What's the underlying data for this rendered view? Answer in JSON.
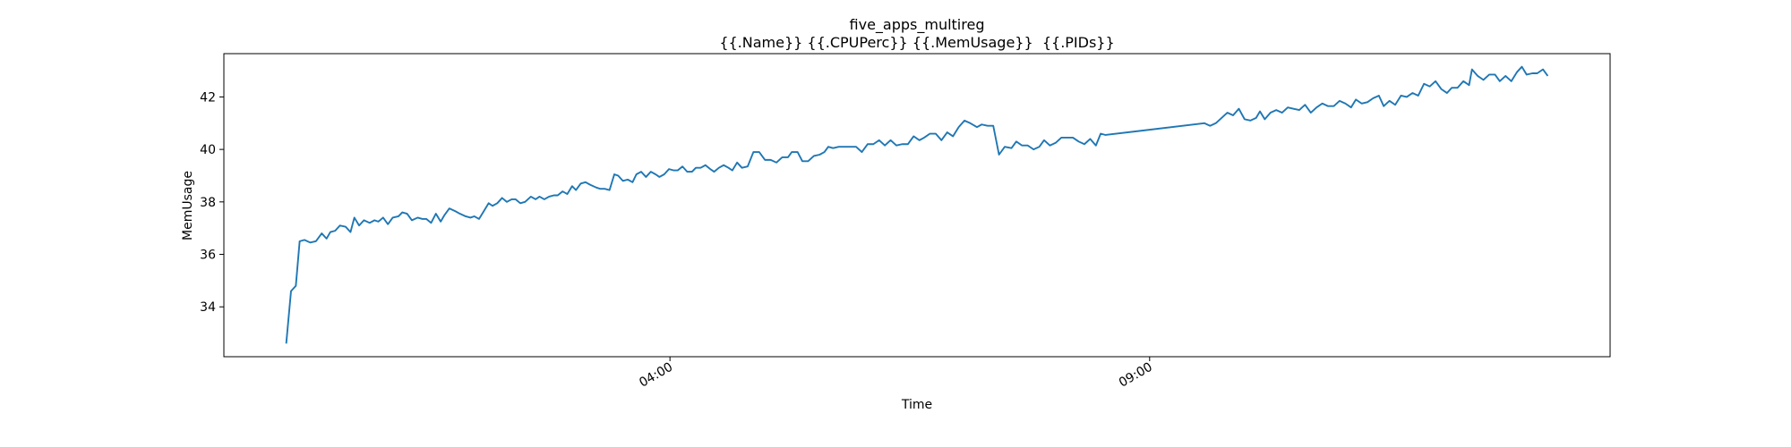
{
  "chart_data": {
    "type": "line",
    "title": "five_apps_multireg",
    "subtitle": "{{.Name}} {{.CPUPerc}} {{.MemUsage}}  {{.PIDs}}",
    "xlabel": "Time",
    "ylabel": "MemUsage",
    "x": [
      0,
      0.05,
      0.1,
      0.14,
      0.19,
      0.25,
      0.31,
      0.37,
      0.42,
      0.46,
      0.51,
      0.56,
      0.62,
      0.67,
      0.71,
      0.76,
      0.81,
      0.87,
      0.92,
      0.96,
      1.01,
      1.06,
      1.11,
      1.17,
      1.21,
      1.26,
      1.31,
      1.37,
      1.42,
      1.46,
      1.51,
      1.56,
      1.61,
      1.65,
      1.7,
      1.76,
      1.81,
      1.87,
      1.92,
      1.96,
      2.01,
      2.06,
      2.11,
      2.15,
      2.2,
      2.25,
      2.3,
      2.35,
      2.39,
      2.44,
      2.49,
      2.55,
      2.6,
      2.64,
      2.69,
      2.74,
      2.79,
      2.83,
      2.88,
      2.93,
      2.98,
      3.02,
      3.07,
      3.12,
      3.17,
      3.23,
      3.27,
      3.32,
      3.37,
      3.42,
      3.46,
      3.51,
      3.56,
      3.61,
      3.65,
      3.7,
      3.75,
      3.8,
      3.85,
      3.89,
      3.94,
      3.99,
      4.04,
      4.08,
      4.13,
      4.18,
      4.23,
      4.27,
      4.32,
      4.37,
      4.42,
      4.46,
      4.51,
      4.56,
      4.61,
      4.65,
      4.7,
      4.75,
      4.81,
      4.87,
      4.93,
      4.99,
      5.05,
      5.11,
      5.17,
      5.23,
      5.27,
      5.33,
      5.38,
      5.44,
      5.5,
      5.56,
      5.61,
      5.65,
      5.7,
      5.76,
      5.82,
      5.88,
      5.94,
      6.0,
      6.06,
      6.12,
      6.18,
      6.24,
      6.3,
      6.36,
      6.42,
      6.48,
      6.54,
      6.6,
      6.65,
      6.71,
      6.77,
      6.83,
      6.89,
      6.95,
      7.01,
      7.07,
      7.13,
      7.2,
      7.25,
      7.31,
      7.37,
      7.43,
      7.49,
      7.56,
      7.61,
      7.67,
      7.73,
      7.79,
      7.85,
      7.9,
      7.96,
      8.02,
      8.08,
      8.14,
      8.2,
      8.26,
      8.32,
      8.38,
      8.44,
      8.49,
      8.54,
      9.57,
      9.63,
      9.69,
      9.75,
      9.81,
      9.87,
      9.93,
      9.99,
      10.05,
      10.11,
      10.15,
      10.2,
      10.26,
      10.32,
      10.38,
      10.44,
      10.5,
      10.56,
      10.62,
      10.68,
      10.74,
      10.8,
      10.86,
      10.92,
      10.98,
      11.04,
      11.1,
      11.15,
      11.21,
      11.27,
      11.33,
      11.39,
      11.44,
      11.5,
      11.56,
      11.62,
      11.68,
      11.74,
      11.8,
      11.86,
      11.92,
      11.98,
      12.04,
      12.1,
      12.15,
      12.21,
      12.27,
      12.33,
      12.36,
      12.42,
      12.48,
      12.54,
      12.6,
      12.65,
      12.71,
      12.77,
      12.83,
      12.88,
      12.93,
      12.99,
      13.04,
      13.1,
      13.15
    ],
    "series": [
      {
        "name": "MemUsage",
        "color": "#1f77b4",
        "values": [
          32.6,
          34.6,
          34.8,
          36.5,
          36.55,
          36.45,
          36.5,
          36.8,
          36.6,
          36.85,
          36.9,
          37.1,
          37.05,
          36.85,
          37.4,
          37.1,
          37.3,
          37.2,
          37.3,
          37.25,
          37.4,
          37.15,
          37.4,
          37.45,
          37.6,
          37.55,
          37.3,
          37.4,
          37.35,
          37.35,
          37.2,
          37.55,
          37.25,
          37.5,
          37.75,
          37.65,
          37.55,
          37.45,
          37.4,
          37.45,
          37.35,
          37.65,
          37.95,
          37.85,
          37.95,
          38.15,
          38.0,
          38.1,
          38.1,
          37.95,
          38.0,
          38.2,
          38.1,
          38.2,
          38.1,
          38.2,
          38.25,
          38.25,
          38.4,
          38.3,
          38.6,
          38.45,
          38.7,
          38.75,
          38.65,
          38.55,
          38.5,
          38.5,
          38.45,
          39.05,
          39.0,
          38.8,
          38.85,
          38.75,
          39.05,
          39.15,
          38.95,
          39.15,
          39.05,
          38.95,
          39.05,
          39.25,
          39.2,
          39.2,
          39.35,
          39.15,
          39.15,
          39.3,
          39.3,
          39.4,
          39.25,
          39.15,
          39.3,
          39.4,
          39.3,
          39.2,
          39.5,
          39.3,
          39.35,
          39.9,
          39.9,
          39.6,
          39.6,
          39.5,
          39.7,
          39.7,
          39.9,
          39.9,
          39.55,
          39.55,
          39.75,
          39.8,
          39.9,
          40.1,
          40.05,
          40.1,
          40.1,
          40.1,
          40.1,
          39.9,
          40.2,
          40.2,
          40.35,
          40.15,
          40.35,
          40.15,
          40.2,
          40.2,
          40.5,
          40.35,
          40.45,
          40.6,
          40.6,
          40.35,
          40.65,
          40.5,
          40.85,
          41.1,
          41.0,
          40.85,
          40.95,
          40.9,
          40.9,
          39.8,
          40.1,
          40.05,
          40.3,
          40.15,
          40.15,
          40.0,
          40.1,
          40.35,
          40.15,
          40.25,
          40.45,
          40.45,
          40.45,
          40.3,
          40.2,
          40.4,
          40.15,
          40.6,
          40.55,
          41.0,
          40.9,
          41.0,
          41.2,
          41.4,
          41.3,
          41.55,
          41.15,
          41.1,
          41.2,
          41.45,
          41.15,
          41.4,
          41.5,
          41.4,
          41.6,
          41.55,
          41.5,
          41.7,
          41.4,
          41.6,
          41.75,
          41.65,
          41.65,
          41.85,
          41.75,
          41.6,
          41.9,
          41.75,
          41.8,
          41.95,
          42.05,
          41.65,
          41.85,
          41.7,
          42.05,
          42.0,
          42.15,
          42.05,
          42.5,
          42.4,
          42.6,
          42.3,
          42.15,
          42.35,
          42.35,
          42.6,
          42.45,
          43.05,
          42.8,
          42.65,
          42.85,
          42.85,
          42.6,
          42.8,
          42.6,
          42.95,
          43.15,
          42.85,
          42.9,
          42.9,
          43.05,
          42.8
        ]
      }
    ],
    "xlim": [
      -0.65,
      13.8
    ],
    "xticks": [
      {
        "value": 4,
        "label": "04:00"
      },
      {
        "value": 9,
        "label": "09:00"
      }
    ],
    "ylim": [
      32.1,
      43.65
    ],
    "yticks": [
      34,
      36,
      38,
      40,
      42
    ],
    "grid": false
  }
}
